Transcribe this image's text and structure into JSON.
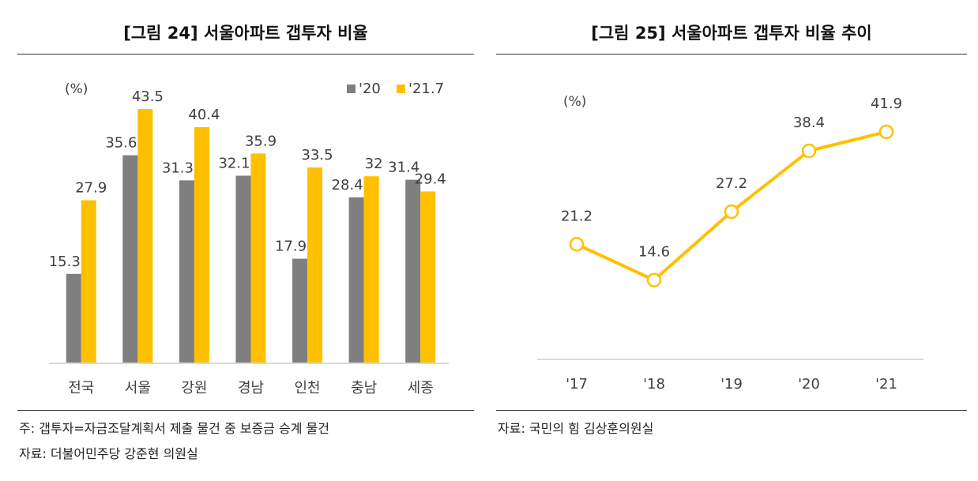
{
  "left_panel": {
    "title": "[그림 24] 서울아파트 갭투자 비율",
    "footnote": "주: 갭투자=자금조달계획서 제출 물건 중 보증금 승계 물건",
    "source": "자료: 더불어민주당 강준현 의원실"
  },
  "right_panel": {
    "title": "[그림 25] 서울아파트 갭투자 비율 추이",
    "source": "자료: 국민의 힘 김상훈의원실"
  },
  "colors": {
    "series_2020": "#7f7f7f",
    "series_2021": "#ffc000",
    "axis": "#d9d9d9",
    "text": "#404040"
  },
  "chart_data": [
    {
      "type": "bar",
      "title": "[그림 24] 서울아파트 갭투자 비율",
      "unit_label": "(%)",
      "categories": [
        "전국",
        "서울",
        "강원",
        "경남",
        "인천",
        "충남",
        "세종"
      ],
      "series": [
        {
          "name": "'20",
          "values": [
            15.3,
            35.6,
            31.3,
            32.1,
            17.9,
            28.4,
            31.4
          ]
        },
        {
          "name": "'21.7",
          "values": [
            27.9,
            43.5,
            40.4,
            35.9,
            33.5,
            32,
            29.4
          ]
        }
      ],
      "ylim": [
        0,
        50
      ],
      "grid": false,
      "legend_position": "top-right"
    },
    {
      "type": "line",
      "title": "[그림 25] 서울아파트 갭투자 비율 추이",
      "unit_label": "(%)",
      "categories": [
        "'17",
        "'18",
        "'19",
        "'20",
        "'21"
      ],
      "values": [
        21.2,
        14.6,
        27.2,
        38.4,
        41.9
      ],
      "ylim": [
        0,
        48
      ],
      "grid": false
    }
  ]
}
